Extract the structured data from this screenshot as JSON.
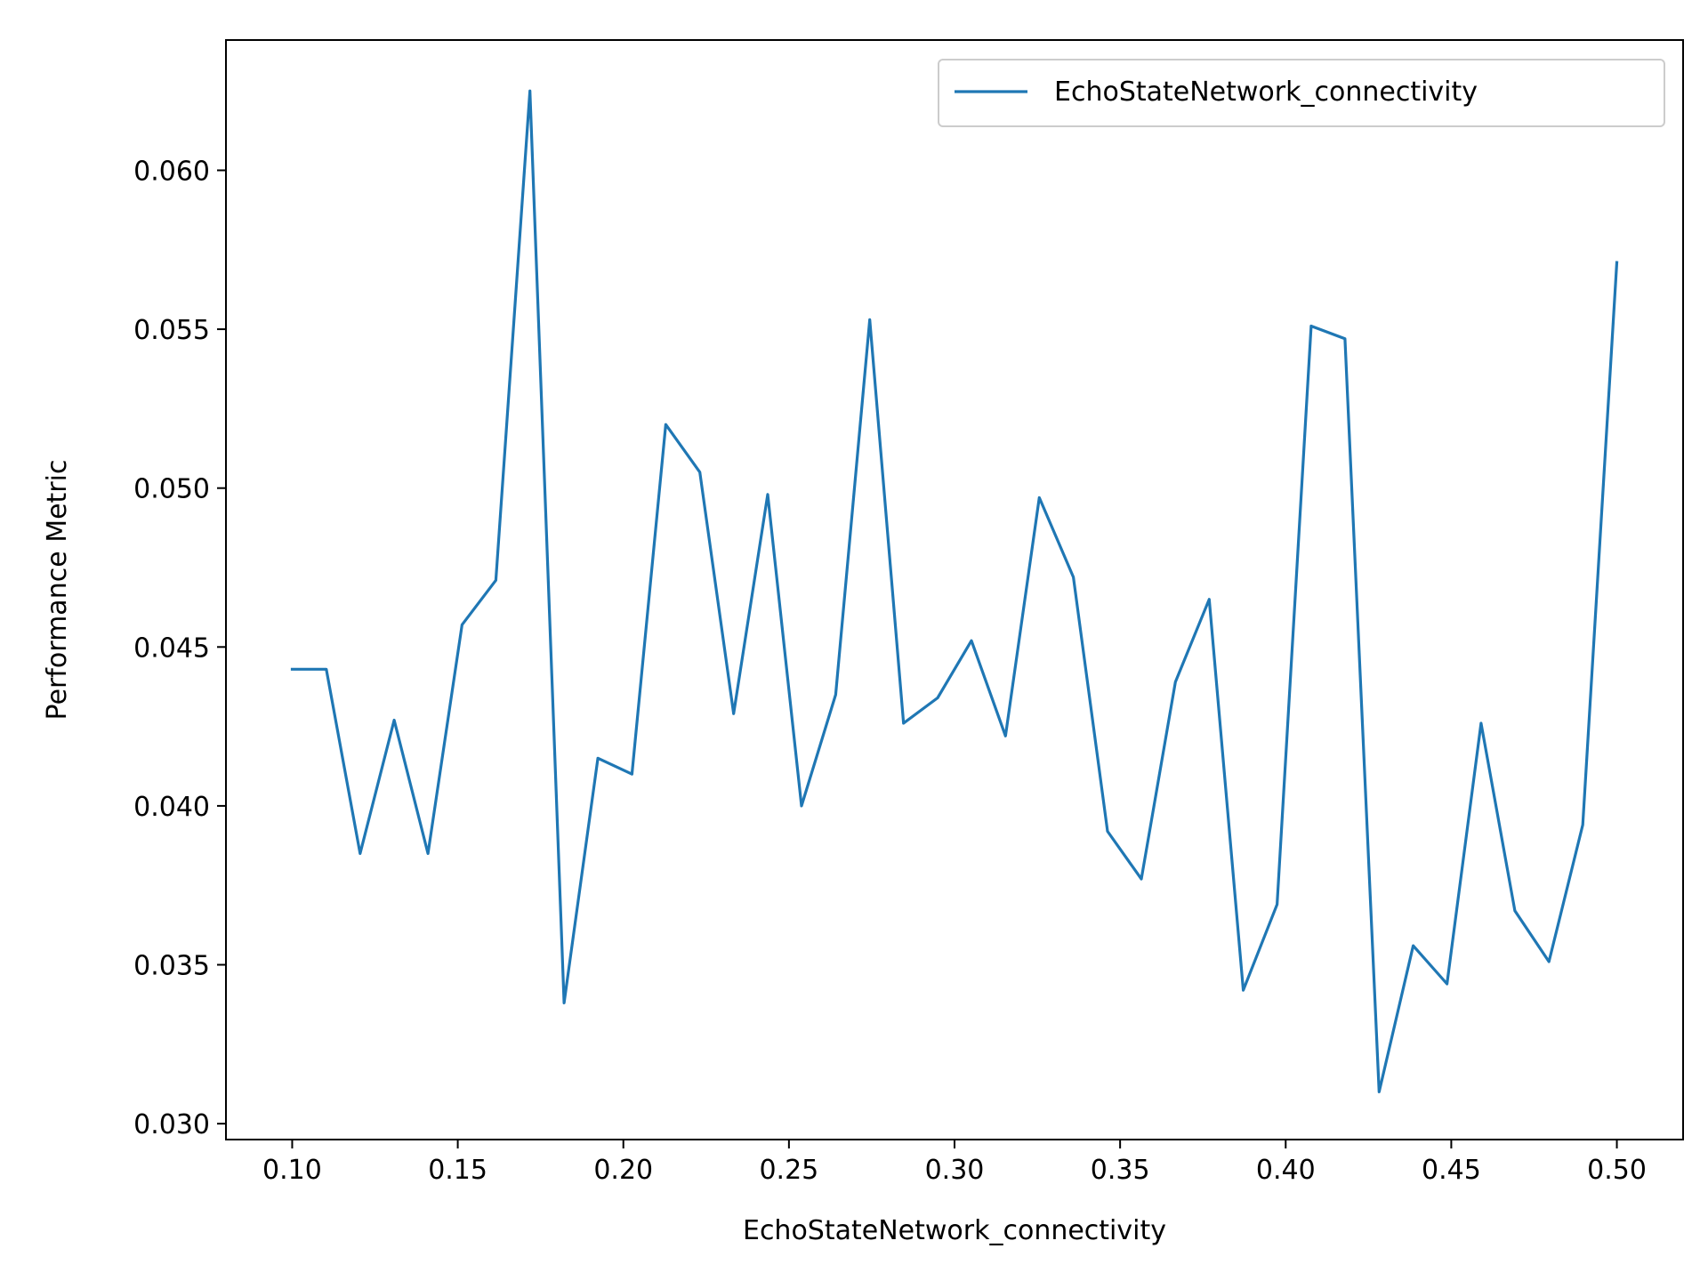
{
  "chart_data": {
    "type": "line",
    "xlabel": "EchoStateNetwork_connectivity",
    "ylabel": "Performance Metric",
    "xlim": [
      0.08,
      0.52
    ],
    "ylim": [
      0.0295,
      0.0641
    ],
    "xticks": [
      0.1,
      0.15,
      0.2,
      0.25,
      0.3,
      0.35,
      0.4,
      0.45,
      0.5
    ],
    "xtick_labels": [
      "0.10",
      "0.15",
      "0.20",
      "0.25",
      "0.30",
      "0.35",
      "0.40",
      "0.45",
      "0.50"
    ],
    "yticks": [
      0.03,
      0.035,
      0.04,
      0.045,
      0.05,
      0.055,
      0.06
    ],
    "ytick_labels": [
      "0.030",
      "0.035",
      "0.040",
      "0.045",
      "0.050",
      "0.055",
      "0.060"
    ],
    "grid": false,
    "legend_position": "top-right",
    "series": [
      {
        "name": "EchoStateNetwork_connectivity",
        "color": "#1f77b4",
        "x": [
          0.1,
          0.1103,
          0.1205,
          0.1308,
          0.141,
          0.1513,
          0.1615,
          0.1718,
          0.1821,
          0.1923,
          0.2026,
          0.2128,
          0.2231,
          0.2333,
          0.2436,
          0.2538,
          0.2641,
          0.2744,
          0.2846,
          0.2949,
          0.3051,
          0.3154,
          0.3256,
          0.3359,
          0.3462,
          0.3564,
          0.3667,
          0.3769,
          0.3872,
          0.3974,
          0.4077,
          0.4179,
          0.4282,
          0.4385,
          0.4487,
          0.459,
          0.4692,
          0.4795,
          0.4897,
          0.5
        ],
        "y": [
          0.0443,
          0.0443,
          0.0385,
          0.0427,
          0.0385,
          0.0457,
          0.0471,
          0.0625,
          0.0338,
          0.0415,
          0.041,
          0.052,
          0.0505,
          0.0429,
          0.0498,
          0.04,
          0.0435,
          0.0553,
          0.0426,
          0.0434,
          0.0452,
          0.0422,
          0.0497,
          0.0472,
          0.0392,
          0.0377,
          0.0439,
          0.0465,
          0.0342,
          0.0369,
          0.0551,
          0.0547,
          0.031,
          0.0356,
          0.0344,
          0.0426,
          0.0367,
          0.0351,
          0.0394,
          0.0571
        ]
      }
    ]
  }
}
